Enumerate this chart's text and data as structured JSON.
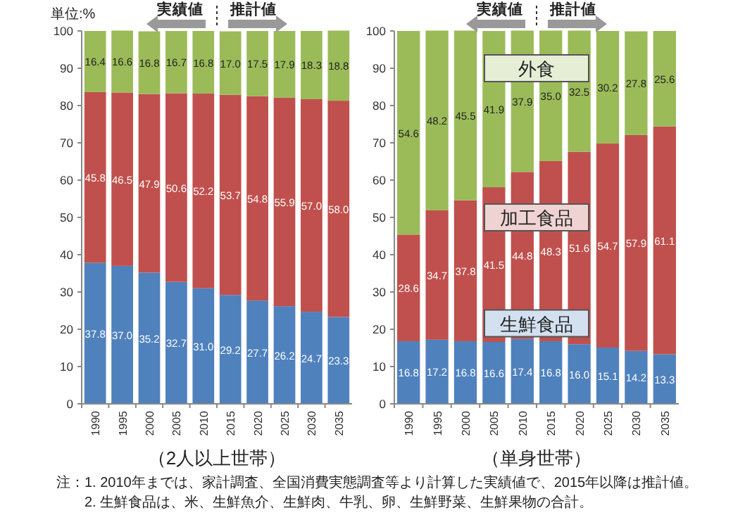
{
  "chart_data": [
    {
      "type": "bar",
      "stacked": true,
      "ylabel": "単位:%",
      "xlabel": "（2人以上世帯）",
      "categories": [
        "1990",
        "1995",
        "2000",
        "2005",
        "2010",
        "2015",
        "2020",
        "2025",
        "2030",
        "2035"
      ],
      "ylim": [
        0,
        100
      ],
      "yticks": [
        0,
        10,
        20,
        30,
        40,
        50,
        60,
        70,
        80,
        90,
        100
      ],
      "grid": false,
      "series": [
        {
          "color": "#4f81bd",
          "values": [
            37.8,
            37.0,
            35.2,
            32.7,
            31.0,
            29.2,
            27.7,
            26.2,
            24.7,
            23.3
          ],
          "value_labels": [
            "37.8",
            "37.0",
            "35.2",
            "32.7",
            "31.0",
            "29.2",
            "27.7",
            "26.2",
            "24.7",
            "23.3"
          ]
        },
        {
          "color": "#c0504d",
          "values": [
            45.8,
            46.5,
            47.9,
            50.6,
            52.2,
            53.7,
            54.8,
            55.9,
            57.0,
            58.0
          ],
          "value_labels": [
            "45.8",
            "46.5",
            "47.9",
            "50.6",
            "52.2",
            "53.7",
            "54.8",
            "55.9",
            "57.0",
            "58.0"
          ]
        },
        {
          "color": "#9bbb59",
          "values": [
            16.4,
            16.6,
            16.8,
            16.7,
            16.8,
            17.0,
            17.5,
            17.9,
            18.3,
            18.8
          ],
          "value_labels": [
            "16.4",
            "16.6",
            "16.8",
            "16.7",
            "16.8",
            "17.0",
            "17.5",
            "17.9",
            "18.3",
            "18.8"
          ]
        }
      ],
      "annotations": [
        "実績値",
        "推計値",
        "注：1. 2010年までは、家計調査、全国消費実態調査等より計算した実績値で、2015年以降は推計値。",
        "2. 生鮮食品は、米、生鮮魚介、生鮮肉、牛乳、卵、生鮮野菜、生鮮果物の合計。"
      ]
    },
    {
      "type": "bar",
      "stacked": true,
      "xlabel": "（単身世帯）",
      "categories": [
        "1990",
        "1995",
        "2000",
        "2005",
        "2010",
        "2015",
        "2020",
        "2025",
        "2030",
        "2035"
      ],
      "ylim": [
        0,
        100
      ],
      "yticks": [
        0,
        10,
        20,
        30,
        40,
        50,
        60,
        70,
        80,
        90,
        100
      ],
      "grid": false,
      "series": [
        {
          "name": "生鮮食品",
          "color": "#4f81bd",
          "values": [
            16.8,
            17.2,
            16.8,
            16.6,
            17.4,
            16.8,
            16.0,
            15.1,
            14.2,
            13.3
          ],
          "value_labels": [
            "16.8",
            "17.2",
            "16.8",
            "16.6",
            "17.4",
            "16.8",
            "16.0",
            "15.1",
            "14.2",
            "13.3"
          ]
        },
        {
          "name": "加工食品",
          "color": "#c0504d",
          "values": [
            28.6,
            34.7,
            37.8,
            41.5,
            44.8,
            48.3,
            51.6,
            54.7,
            57.9,
            61.1
          ],
          "value_labels": [
            "28.6",
            "34.7",
            "37.8",
            "41.5",
            "44.8",
            "48.3",
            "51.6",
            "54.7",
            "57.9",
            "61.1"
          ]
        },
        {
          "name": "外食",
          "color": "#9bbb59",
          "values": [
            54.6,
            48.2,
            45.5,
            41.9,
            37.9,
            35.0,
            32.5,
            30.2,
            27.8,
            25.6
          ],
          "value_labels": [
            "54.6",
            "48.2",
            "45.5",
            "41.9",
            "37.9",
            "35.0",
            "32.5",
            "30.2",
            "27.8",
            "25.6"
          ]
        }
      ],
      "annotations": [
        "実績値",
        "推計値"
      ]
    }
  ]
}
